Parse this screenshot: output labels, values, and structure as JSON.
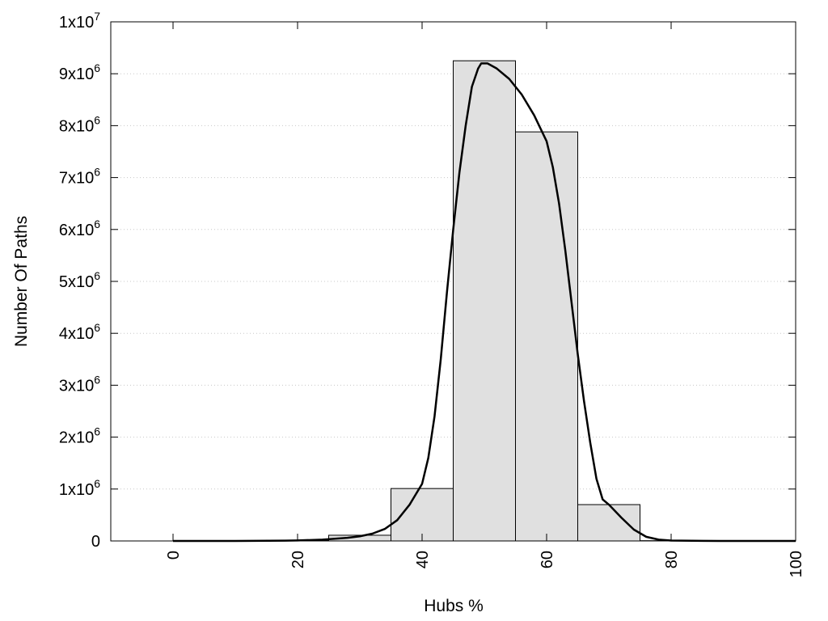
{
  "chart_data": {
    "type": "bar",
    "xlabel": "Hubs %",
    "ylabel": "Number Of Paths",
    "xlim": [
      -10,
      100
    ],
    "ylim": [
      0,
      10000000
    ],
    "grid": "horizontal-dotted",
    "x_ticks": [
      0,
      20,
      40,
      60,
      80,
      100
    ],
    "x_tick_labels": [
      "0",
      "20",
      "40",
      "60",
      "80",
      "100"
    ],
    "y_ticks": [
      0,
      1000000,
      2000000,
      3000000,
      4000000,
      5000000,
      6000000,
      7000000,
      8000000,
      9000000,
      10000000
    ],
    "y_tick_labels": [
      {
        "base": "0",
        "exp": ""
      },
      {
        "base": "1x10",
        "exp": "6"
      },
      {
        "base": "2x10",
        "exp": "6"
      },
      {
        "base": "3x10",
        "exp": "6"
      },
      {
        "base": "4x10",
        "exp": "6"
      },
      {
        "base": "5x10",
        "exp": "6"
      },
      {
        "base": "6x10",
        "exp": "6"
      },
      {
        "base": "7x10",
        "exp": "6"
      },
      {
        "base": "8x10",
        "exp": "6"
      },
      {
        "base": "9x10",
        "exp": "6"
      },
      {
        "base": "1x10",
        "exp": "7"
      }
    ],
    "bin_width": 10,
    "bins": [
      {
        "x": 0,
        "value": 0
      },
      {
        "x": 10,
        "value": 0
      },
      {
        "x": 20,
        "value": 10000
      },
      {
        "x": 30,
        "value": 110000
      },
      {
        "x": 40,
        "value": 1010000
      },
      {
        "x": 50,
        "value": 9250000
      },
      {
        "x": 60,
        "value": 7880000
      },
      {
        "x": 70,
        "value": 700000
      },
      {
        "x": 80,
        "value": 5000
      },
      {
        "x": 90,
        "value": 0
      }
    ],
    "bar_color": "#e0e0e0",
    "curve_color": "#000000",
    "curve": [
      [
        0,
        0
      ],
      [
        10,
        0
      ],
      [
        18,
        5000
      ],
      [
        20,
        10000
      ],
      [
        24,
        25000
      ],
      [
        28,
        60000
      ],
      [
        30,
        90000
      ],
      [
        32,
        140000
      ],
      [
        34,
        230000
      ],
      [
        36,
        400000
      ],
      [
        38,
        700000
      ],
      [
        40,
        1100000
      ],
      [
        41,
        1600000
      ],
      [
        42,
        2400000
      ],
      [
        43,
        3500000
      ],
      [
        44,
        4800000
      ],
      [
        45,
        6000000
      ],
      [
        46,
        7100000
      ],
      [
        47,
        8000000
      ],
      [
        48,
        8750000
      ],
      [
        49,
        9100000
      ],
      [
        49.5,
        9200000
      ],
      [
        50.5,
        9200000
      ],
      [
        52,
        9100000
      ],
      [
        54,
        8900000
      ],
      [
        56,
        8600000
      ],
      [
        58,
        8200000
      ],
      [
        60,
        7700000
      ],
      [
        61,
        7200000
      ],
      [
        62,
        6500000
      ],
      [
        63,
        5600000
      ],
      [
        64,
        4600000
      ],
      [
        65,
        3600000
      ],
      [
        66,
        2700000
      ],
      [
        67,
        1900000
      ],
      [
        68,
        1200000
      ],
      [
        69,
        800000
      ],
      [
        70,
        700000
      ],
      [
        72,
        450000
      ],
      [
        74,
        220000
      ],
      [
        76,
        80000
      ],
      [
        78,
        25000
      ],
      [
        80,
        8000
      ],
      [
        85,
        2000
      ],
      [
        90,
        0
      ],
      [
        100,
        0
      ]
    ]
  }
}
